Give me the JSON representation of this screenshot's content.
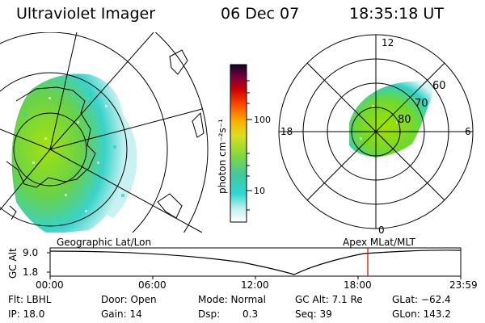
{
  "header": {
    "instrument": "Ultraviolet Imager",
    "date": "06 Dec 07",
    "time": "18:35:18 UT"
  },
  "colorbar": {
    "unit_label": "photon cm⁻²s⁻¹",
    "ticks": [
      "100",
      "10"
    ]
  },
  "polar_plot": {
    "mlt_labels": [
      "12",
      "18",
      "6",
      "0"
    ],
    "lat_labels": [
      "60",
      "70",
      "80"
    ]
  },
  "timeline": {
    "left_title": "Geographic Lat/Lon",
    "right_title": "Apex MLat/MLT",
    "axis_label": "GC Alt",
    "y_ticks": [
      "9.0",
      "1.8"
    ],
    "x_ticks": [
      "00:00",
      "06:00",
      "12:00",
      "18:00",
      "23:59"
    ],
    "cursor_color": "#e00000"
  },
  "info": {
    "row1": {
      "filter": "Flt: LBHL",
      "door": "Door: Open",
      "mode": "Mode: Normal",
      "gc_alt": "GC Alt: 7.1 Re",
      "glat": "GLat: −62.4"
    },
    "row2": {
      "ip": "IP: 18.0",
      "gain": "Gain: 14",
      "dsp_label": "Dsp:",
      "dsp_value": "0.3",
      "seq": "Seq: 39",
      "glon": "GLon: 143.2"
    }
  }
}
